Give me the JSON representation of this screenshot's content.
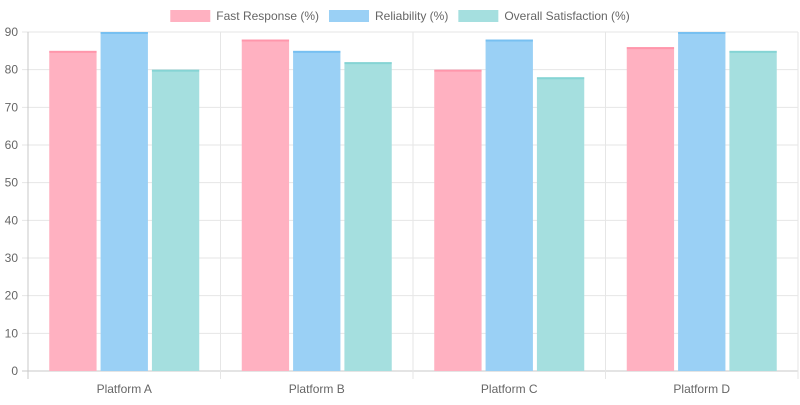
{
  "chart_data": {
    "type": "bar",
    "title": "",
    "xlabel": "",
    "ylabel": "",
    "categories": [
      "Platform A",
      "Platform B",
      "Platform C",
      "Platform D"
    ],
    "series": [
      {
        "name": "Fast Response (%)",
        "values": [
          85,
          88,
          80,
          86
        ],
        "color": "#ffb1c1",
        "border": "#ff6384"
      },
      {
        "name": "Reliability (%)",
        "values": [
          90,
          85,
          88,
          90
        ],
        "color": "#9ad0f5",
        "border": "#36a2eb"
      },
      {
        "name": "Overall Satisfaction (%)",
        "values": [
          80,
          82,
          78,
          85
        ],
        "color": "#a5dfdf",
        "border": "#4bc0c0"
      }
    ],
    "ylim": [
      0,
      90
    ],
    "yticks": [
      0,
      10,
      20,
      30,
      40,
      50,
      60,
      70,
      80,
      90
    ],
    "grid": true,
    "legend_position": "top"
  }
}
